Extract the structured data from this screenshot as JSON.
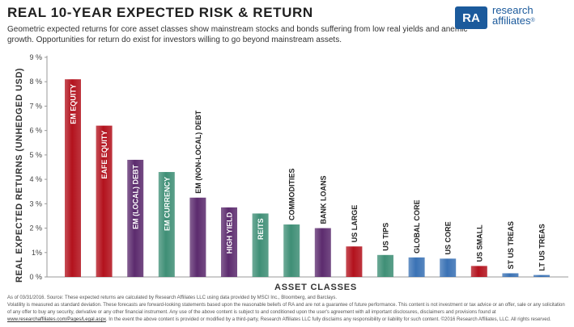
{
  "header": {
    "title": "REAL 10-YEAR EXPECTED RISK & RETURN",
    "subtitle": "Geometric expected returns for core asset classes show mainstream stocks and bonds suffering from low real yields and anemic growth. Opportunities for return do exist for investors willing to go beyond mainstream assets."
  },
  "logo": {
    "mark": "RA",
    "line1": "research",
    "line2": "affiliates",
    "reg": "®"
  },
  "chart_data": {
    "type": "bar",
    "title": "",
    "xlabel": "ASSET CLASSES",
    "ylabel": "REAL EXPECTED RETURNS (UNHEDGED USD)",
    "ylim": [
      0,
      9
    ],
    "yticks": [
      "0 %",
      "1%",
      "2 %",
      "3 %",
      "4 %",
      "5 %",
      "6 %",
      "7 %",
      "8 %",
      "9 %"
    ],
    "grid": false,
    "categories": [
      "EM EQUITY",
      "EAFE EQUITY",
      "EM (LOCAL) DEBT",
      "EM CURRENCY",
      "EM (NON-LOCAL) DEBT",
      "HIGH YIELD",
      "REITS",
      "COMMODITIES",
      "BANK LOANS",
      "US LARGE",
      "US TIPS",
      "GLOBAL CORE",
      "US CORE",
      "US SMALL",
      "ST US TREAS",
      "LT US TREAS"
    ],
    "values": [
      8.1,
      6.2,
      4.8,
      4.3,
      3.25,
      2.85,
      2.6,
      2.15,
      2.0,
      1.25,
      0.9,
      0.8,
      0.75,
      0.45,
      0.15,
      0.08
    ],
    "colors": [
      "#b3121d",
      "#b3121d",
      "#5c2b6e",
      "#3f8f76",
      "#5c2b6e",
      "#5c2b6e",
      "#3f8f76",
      "#3f8f76",
      "#5c2b6e",
      "#b3121d",
      "#3f8f76",
      "#3a72b5",
      "#3a72b5",
      "#b3121d",
      "#3a72b5",
      "#3a72b5"
    ],
    "label_inside": [
      true,
      true,
      true,
      true,
      false,
      true,
      true,
      false,
      false,
      false,
      false,
      false,
      false,
      false,
      false,
      false
    ]
  },
  "footnote": {
    "line1": "As of 03/31/2016. Source: These expected returns are calculated by Research Affiliates LLC using data provided by MSCI Inc., Bloomberg, and Barclays.",
    "line2": "Volatility is measured as standard deviation. These forecasts are forward-looking statements based upon the reasonable beliefs of RA and are not a guarantee of future performance. This content is not investment or tax advice or an offer, sale or any solicitation of any offer to buy any security, derivative or any other financial instrument. Any use of the above content is subject to and conditioned upon the user's agreement with all important disclosures, disclaimers and provisions found at",
    "link": "www.researchaffiliates.com/Pages/Legal.aspx",
    "line3": ". In the event the above content is provided or modified by a third-party, Research Affiliates LLC fully disclaims any responsibility or liability for such content. ©2016 Research Affiliates, LLC. All rights reserved."
  }
}
